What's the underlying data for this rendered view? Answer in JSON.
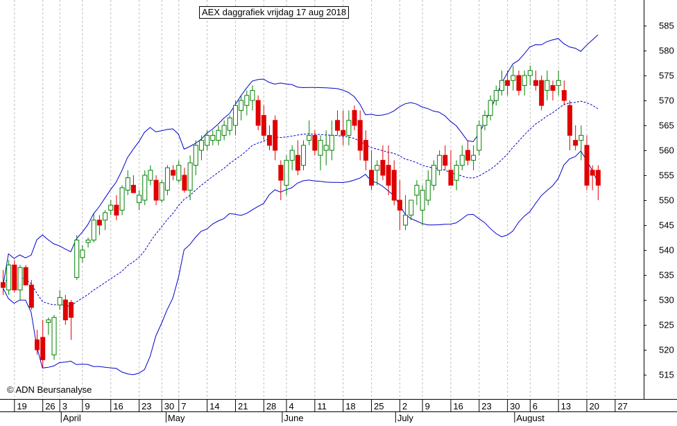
{
  "chart_data": {
    "type": "candlestick",
    "title": "AEX daggrafiek vrijdag 17 aug 2018",
    "copyright": "© ADN Beursanalyse",
    "ylim": [
      510,
      590
    ],
    "y_ticks": [
      515,
      520,
      525,
      530,
      535,
      540,
      545,
      550,
      555,
      560,
      565,
      570,
      575,
      580,
      585
    ],
    "x_day_ticks": [
      {
        "i": 2,
        "label": "19"
      },
      {
        "i": 7,
        "label": "26"
      },
      {
        "i": 10,
        "label": "3"
      },
      {
        "i": 14,
        "label": "9"
      },
      {
        "i": 19,
        "label": "16"
      },
      {
        "i": 24,
        "label": "23"
      },
      {
        "i": 28,
        "label": "30"
      },
      {
        "i": 31,
        "label": "7"
      },
      {
        "i": 36,
        "label": "14"
      },
      {
        "i": 41,
        "label": "21"
      },
      {
        "i": 46,
        "label": "28"
      },
      {
        "i": 50,
        "label": "4"
      },
      {
        "i": 55,
        "label": "11"
      },
      {
        "i": 60,
        "label": "18"
      },
      {
        "i": 65,
        "label": "25"
      },
      {
        "i": 70,
        "label": "2"
      },
      {
        "i": 74,
        "label": "9"
      },
      {
        "i": 79,
        "label": "16"
      },
      {
        "i": 84,
        "label": "23"
      },
      {
        "i": 89,
        "label": "30"
      },
      {
        "i": 93,
        "label": "6"
      },
      {
        "i": 98,
        "label": "13"
      },
      {
        "i": 103,
        "label": "20"
      },
      {
        "i": 108,
        "label": "27"
      }
    ],
    "month_labels": [
      {
        "i": 10.5,
        "label": "April"
      },
      {
        "i": 29,
        "label": "May"
      },
      {
        "i": 49.5,
        "label": "June"
      },
      {
        "i": 69.5,
        "label": "July"
      },
      {
        "i": 90.5,
        "label": "August"
      }
    ],
    "candles": [
      {
        "o": 533.5,
        "h": 536,
        "l": 531,
        "c": 532.5
      },
      {
        "o": 532,
        "h": 538,
        "l": 531,
        "c": 537
      },
      {
        "o": 537,
        "h": 538,
        "l": 531.5,
        "c": 532
      },
      {
        "o": 532,
        "h": 537,
        "l": 530,
        "c": 536.5
      },
      {
        "o": 536.5,
        "h": 537,
        "l": 533,
        "c": 533
      },
      {
        "o": 533,
        "h": 534,
        "l": 528,
        "c": 528.5
      },
      {
        "o": 522,
        "h": 524,
        "l": 519,
        "c": 520
      },
      {
        "o": 522.5,
        "h": 526,
        "l": 516.5,
        "c": 518
      },
      {
        "o": 525.5,
        "h": 526.5,
        "l": 523,
        "c": 526
      },
      {
        "o": 519,
        "h": 527,
        "l": 518,
        "c": 526.5
      },
      {
        "o": 529,
        "h": 532,
        "l": 528,
        "c": 530.5
      },
      {
        "o": 530,
        "h": 531,
        "l": 525,
        "c": 526
      },
      {
        "o": 529.5,
        "h": 530,
        "l": 522,
        "c": 526.5
      },
      {
        "o": 534.5,
        "h": 543,
        "l": 534,
        "c": 542
      },
      {
        "o": 538.5,
        "h": 541,
        "l": 537.5,
        "c": 540
      },
      {
        "o": 541.5,
        "h": 542.5,
        "l": 540.5,
        "c": 542
      },
      {
        "o": 542,
        "h": 547.5,
        "l": 541.5,
        "c": 546
      },
      {
        "o": 546,
        "h": 547,
        "l": 543,
        "c": 545
      },
      {
        "o": 546,
        "h": 548,
        "l": 544,
        "c": 547.5
      },
      {
        "o": 548,
        "h": 550,
        "l": 547,
        "c": 549
      },
      {
        "o": 549,
        "h": 551,
        "l": 546,
        "c": 547
      },
      {
        "o": 548,
        "h": 553,
        "l": 547,
        "c": 552.5
      },
      {
        "o": 552,
        "h": 556,
        "l": 551,
        "c": 554.5
      },
      {
        "o": 553,
        "h": 555,
        "l": 551.5,
        "c": 551.5
      },
      {
        "o": 549.5,
        "h": 552,
        "l": 548,
        "c": 551
      },
      {
        "o": 550,
        "h": 556,
        "l": 549,
        "c": 555
      },
      {
        "o": 554,
        "h": 557,
        "l": 553,
        "c": 556
      },
      {
        "o": 554,
        "h": 555,
        "l": 549,
        "c": 550
      },
      {
        "o": 550,
        "h": 554,
        "l": 549.5,
        "c": 553.5
      },
      {
        "o": 552,
        "h": 557,
        "l": 551,
        "c": 556.5
      },
      {
        "o": 556,
        "h": 557,
        "l": 554,
        "c": 555
      },
      {
        "o": 554,
        "h": 558,
        "l": 553.5,
        "c": 557
      },
      {
        "o": 555,
        "h": 556.5,
        "l": 551.5,
        "c": 552
      },
      {
        "o": 552,
        "h": 559,
        "l": 550,
        "c": 557.5
      },
      {
        "o": 557,
        "h": 562,
        "l": 555,
        "c": 561
      },
      {
        "o": 560,
        "h": 563,
        "l": 558,
        "c": 562
      },
      {
        "o": 561,
        "h": 564,
        "l": 560,
        "c": 563
      },
      {
        "o": 562,
        "h": 564,
        "l": 561,
        "c": 563
      },
      {
        "o": 562,
        "h": 565,
        "l": 561,
        "c": 564
      },
      {
        "o": 563,
        "h": 566,
        "l": 562,
        "c": 565
      },
      {
        "o": 564,
        "h": 567,
        "l": 563,
        "c": 566.5
      },
      {
        "o": 565,
        "h": 570,
        "l": 563,
        "c": 569
      },
      {
        "o": 568,
        "h": 571,
        "l": 566,
        "c": 570
      },
      {
        "o": 569,
        "h": 572,
        "l": 567,
        "c": 571
      },
      {
        "o": 570,
        "h": 573,
        "l": 568,
        "c": 572
      },
      {
        "o": 570,
        "h": 571,
        "l": 564,
        "c": 565
      },
      {
        "o": 567,
        "h": 569,
        "l": 562,
        "c": 563
      },
      {
        "o": 563,
        "h": 565,
        "l": 560,
        "c": 561
      },
      {
        "o": 566,
        "h": 567,
        "l": 558,
        "c": 560
      },
      {
        "o": 557,
        "h": 558,
        "l": 550,
        "c": 554
      },
      {
        "o": 553,
        "h": 559,
        "l": 551,
        "c": 558
      },
      {
        "o": 558,
        "h": 561,
        "l": 556,
        "c": 560
      },
      {
        "o": 559,
        "h": 562,
        "l": 555,
        "c": 556
      },
      {
        "o": 557,
        "h": 562,
        "l": 556,
        "c": 561
      },
      {
        "o": 562,
        "h": 566,
        "l": 561,
        "c": 563
      },
      {
        "o": 563,
        "h": 564,
        "l": 559,
        "c": 560
      },
      {
        "o": 559,
        "h": 563,
        "l": 556,
        "c": 562
      },
      {
        "o": 560,
        "h": 564,
        "l": 557,
        "c": 561
      },
      {
        "o": 560,
        "h": 566,
        "l": 558,
        "c": 563
      },
      {
        "o": 566,
        "h": 568,
        "l": 563,
        "c": 564
      },
      {
        "o": 564,
        "h": 568,
        "l": 561,
        "c": 563
      },
      {
        "o": 563,
        "h": 568,
        "l": 561,
        "c": 566
      },
      {
        "o": 568,
        "h": 569,
        "l": 564,
        "c": 565
      },
      {
        "o": 566,
        "h": 568,
        "l": 558,
        "c": 560
      },
      {
        "o": 562,
        "h": 564,
        "l": 556,
        "c": 558
      },
      {
        "o": 556,
        "h": 560,
        "l": 552,
        "c": 553
      },
      {
        "o": 556,
        "h": 558,
        "l": 553,
        "c": 557
      },
      {
        "o": 558,
        "h": 561,
        "l": 554,
        "c": 555
      },
      {
        "o": 557,
        "h": 561,
        "l": 551,
        "c": 553
      },
      {
        "o": 556,
        "h": 558,
        "l": 549,
        "c": 550
      },
      {
        "o": 550,
        "h": 554,
        "l": 544,
        "c": 548
      },
      {
        "o": 545,
        "h": 551,
        "l": 544,
        "c": 547
      },
      {
        "o": 547,
        "h": 550,
        "l": 546,
        "c": 550
      },
      {
        "o": 551,
        "h": 554,
        "l": 549,
        "c": 553
      },
      {
        "o": 548,
        "h": 553,
        "l": 545,
        "c": 552
      },
      {
        "o": 550,
        "h": 556,
        "l": 549,
        "c": 554
      },
      {
        "o": 553,
        "h": 558,
        "l": 552,
        "c": 557
      },
      {
        "o": 556,
        "h": 560,
        "l": 555,
        "c": 559
      },
      {
        "o": 559,
        "h": 561,
        "l": 556,
        "c": 557
      },
      {
        "o": 556,
        "h": 560,
        "l": 553,
        "c": 553
      },
      {
        "o": 554,
        "h": 558,
        "l": 552,
        "c": 557
      },
      {
        "o": 557,
        "h": 561,
        "l": 556,
        "c": 559
      },
      {
        "o": 560,
        "h": 562,
        "l": 557,
        "c": 558
      },
      {
        "o": 558,
        "h": 561,
        "l": 556,
        "c": 559
      },
      {
        "o": 560,
        "h": 566,
        "l": 559,
        "c": 565
      },
      {
        "o": 565,
        "h": 568,
        "l": 564,
        "c": 567
      },
      {
        "o": 567,
        "h": 571,
        "l": 566,
        "c": 570
      },
      {
        "o": 570,
        "h": 573,
        "l": 569,
        "c": 572
      },
      {
        "o": 572,
        "h": 576,
        "l": 571,
        "c": 574
      },
      {
        "o": 574,
        "h": 576,
        "l": 571,
        "c": 573
      },
      {
        "o": 574,
        "h": 577,
        "l": 572,
        "c": 575
      },
      {
        "o": 575,
        "h": 576,
        "l": 571,
        "c": 572
      },
      {
        "o": 573,
        "h": 576,
        "l": 571,
        "c": 575
      },
      {
        "o": 575,
        "h": 577,
        "l": 573,
        "c": 576
      },
      {
        "o": 574,
        "h": 576,
        "l": 572,
        "c": 573
      },
      {
        "o": 574,
        "h": 575,
        "l": 568,
        "c": 569
      },
      {
        "o": 572,
        "h": 576,
        "l": 570,
        "c": 574
      },
      {
        "o": 573,
        "h": 574,
        "l": 570,
        "c": 572
      },
      {
        "o": 573,
        "h": 576,
        "l": 571,
        "c": 574
      },
      {
        "o": 572,
        "h": 574,
        "l": 569,
        "c": 570
      },
      {
        "o": 569,
        "h": 570,
        "l": 560,
        "c": 563
      },
      {
        "o": 562,
        "h": 565,
        "l": 560,
        "c": 561
      },
      {
        "o": 562,
        "h": 565,
        "l": 558,
        "c": 563
      },
      {
        "o": 561,
        "h": 563,
        "l": 552,
        "c": 553
      },
      {
        "o": 556,
        "h": 557,
        "l": 552,
        "c": 555
      },
      {
        "o": 556,
        "h": 557,
        "l": 550,
        "c": 553
      }
    ]
  }
}
